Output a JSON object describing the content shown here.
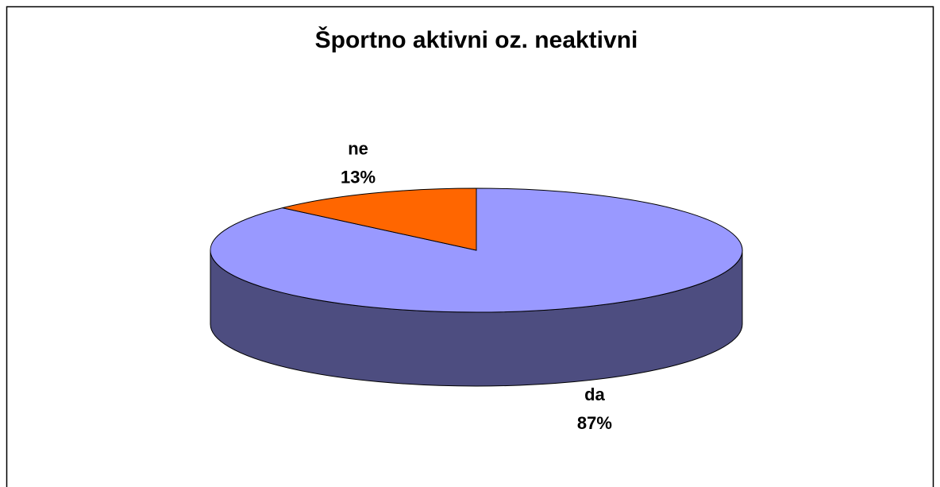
{
  "chart_data": {
    "type": "pie3d",
    "title": "Športno aktivni oz. neaktivni",
    "categories": [
      "da",
      "ne"
    ],
    "values": [
      87,
      13
    ],
    "value_labels": [
      "87%",
      "13%"
    ],
    "colors": [
      "#9999ff",
      "#ff6600"
    ]
  }
}
